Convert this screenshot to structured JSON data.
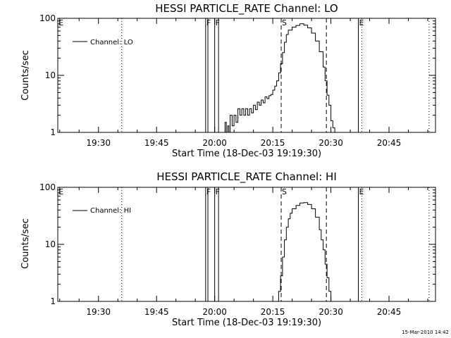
{
  "chart_data": [
    {
      "type": "line",
      "title": "HESSI PARTICLE_RATE Channel: LO",
      "xlabel": "Start Time (18-Dec-03 19:19:30)",
      "ylabel": "Counts/sec",
      "legend": "Channel: LO",
      "legend_placement": "top-left",
      "yscale": "log",
      "ylim": [
        1,
        100
      ],
      "xlim": [
        "19:19:30",
        "20:57:00"
      ],
      "x_ticks": [
        "19:30",
        "19:45",
        "20:00",
        "20:15",
        "20:30",
        "20:45"
      ],
      "y_ticks": [
        "1",
        "10",
        "100"
      ],
      "grid": false,
      "markers": [
        {
          "label": "E",
          "time": "19:19:30",
          "style": "dotted"
        },
        {
          "label": "",
          "time": "19:36:00",
          "style": "dotted"
        },
        {
          "label": "F",
          "time": "19:57:40",
          "style": "solid"
        },
        {
          "label": "",
          "time": "19:58:15",
          "style": "solid"
        },
        {
          "label": "F",
          "time": "20:00:00",
          "style": "solid"
        },
        {
          "label": "",
          "time": "20:01:00",
          "style": "solid"
        },
        {
          "label": "S",
          "time": "20:17:10",
          "style": "dashed"
        },
        {
          "label": "",
          "time": "20:28:50",
          "style": "dashed"
        },
        {
          "label": "E",
          "time": "20:37:05",
          "style": "solid"
        },
        {
          "label": "",
          "time": "20:38:00",
          "style": "dotted"
        },
        {
          "label": "",
          "time": "20:55:20",
          "style": "dotted"
        }
      ],
      "series": [
        {
          "name": "Channel: LO",
          "x": [
            "20:02:20",
            "20:02:40",
            "20:03:00",
            "20:03:20",
            "20:03:40",
            "20:04:00",
            "20:04:30",
            "20:05:00",
            "20:05:30",
            "20:06:00",
            "20:06:30",
            "20:07:00",
            "20:07:30",
            "20:08:00",
            "20:08:30",
            "20:09:00",
            "20:09:30",
            "20:10:00",
            "20:10:30",
            "20:11:00",
            "20:11:30",
            "20:12:00",
            "20:12:30",
            "20:13:00",
            "20:13:30",
            "20:14:00",
            "20:14:30",
            "20:15:00",
            "20:15:30",
            "20:16:00",
            "20:16:30",
            "20:17:00",
            "20:17:30",
            "20:18:00",
            "20:18:30",
            "20:19:00",
            "20:20:00",
            "20:21:00",
            "20:22:00",
            "20:23:00",
            "20:24:00",
            "20:25:00",
            "20:26:00",
            "20:27:00",
            "20:28:00",
            "20:28:30",
            "20:29:00",
            "20:29:30",
            "20:30:00",
            "20:30:30",
            "20:31:00"
          ],
          "values": [
            1,
            1.5,
            1,
            1.3,
            1,
            2,
            1.3,
            2,
            1.5,
            2.6,
            2,
            2.6,
            2,
            2.6,
            2,
            2.6,
            2.2,
            3,
            2.5,
            3.4,
            3,
            3.7,
            3.3,
            4.2,
            3.9,
            4.4,
            4.6,
            5.5,
            6.5,
            8,
            11,
            16,
            25,
            38,
            52,
            62,
            70,
            75,
            80,
            76,
            68,
            55,
            40,
            26,
            14,
            8,
            4.5,
            3,
            1.6,
            1.2,
            1
          ]
        }
      ]
    },
    {
      "type": "line",
      "title": "HESSI PARTICLE_RATE Channel: HI",
      "xlabel": "Start Time (18-Dec-03 19:19:30)",
      "ylabel": "Counts/sec",
      "legend": "Channel: HI",
      "legend_placement": "top-left",
      "yscale": "log",
      "ylim": [
        1,
        100
      ],
      "xlim": [
        "19:19:30",
        "20:57:00"
      ],
      "x_ticks": [
        "19:30",
        "19:45",
        "20:00",
        "20:15",
        "20:30",
        "20:45"
      ],
      "y_ticks": [
        "1",
        "10",
        "100"
      ],
      "grid": false,
      "markers": [
        {
          "label": "E",
          "time": "19:19:30",
          "style": "dotted"
        },
        {
          "label": "",
          "time": "19:36:00",
          "style": "dotted"
        },
        {
          "label": "F",
          "time": "19:57:40",
          "style": "solid"
        },
        {
          "label": "",
          "time": "19:58:15",
          "style": "solid"
        },
        {
          "label": "F",
          "time": "20:00:00",
          "style": "solid"
        },
        {
          "label": "",
          "time": "20:01:00",
          "style": "solid"
        },
        {
          "label": "S",
          "time": "20:17:10",
          "style": "dashed"
        },
        {
          "label": "",
          "time": "20:28:50",
          "style": "dashed"
        },
        {
          "label": "E",
          "time": "20:37:05",
          "style": "solid"
        },
        {
          "label": "",
          "time": "20:38:00",
          "style": "dotted"
        },
        {
          "label": "",
          "time": "20:55:20",
          "style": "dotted"
        }
      ],
      "series": [
        {
          "name": "Channel: HI",
          "x": [
            "20:16:00",
            "20:16:30",
            "20:17:00",
            "20:17:30",
            "20:18:00",
            "20:18:30",
            "20:19:00",
            "20:19:30",
            "20:20:00",
            "20:21:00",
            "20:22:00",
            "20:23:00",
            "20:24:00",
            "20:25:00",
            "20:26:00",
            "20:27:00",
            "20:27:30",
            "20:28:00",
            "20:28:30",
            "20:29:00",
            "20:29:30",
            "20:30:00"
          ],
          "values": [
            1,
            1.5,
            2.8,
            6,
            12,
            20,
            28,
            35,
            42,
            48,
            53,
            54,
            50,
            42,
            30,
            18,
            12,
            8,
            4.5,
            2.6,
            1.5,
            1
          ]
        }
      ]
    }
  ],
  "footer": {
    "timestamp": "15-Mar-2010 14:42"
  }
}
